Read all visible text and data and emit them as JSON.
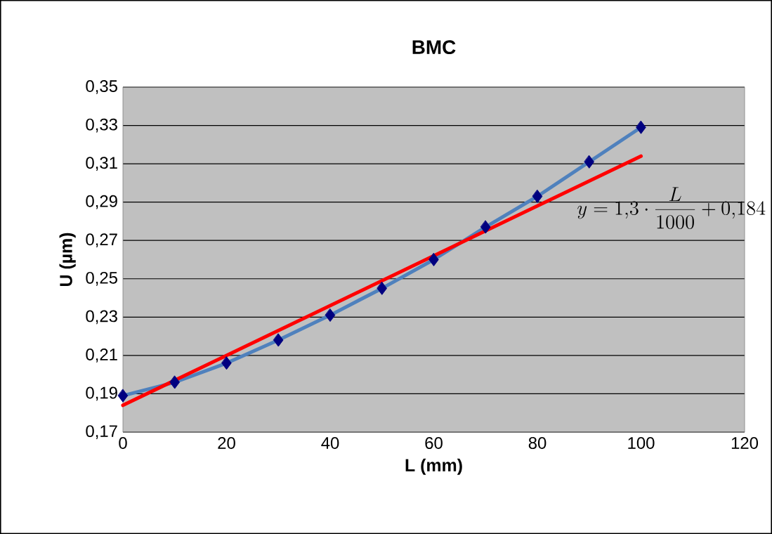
{
  "chart_data": {
    "type": "line",
    "title": "BMC",
    "xlabel": "L (mm)",
    "ylabel": "U (µm)",
    "x": [
      0,
      10,
      20,
      30,
      40,
      50,
      60,
      70,
      80,
      90,
      100
    ],
    "series": [
      {
        "color": "#4f81bd",
        "colors": [
          "#000080",
          "#000080",
          "#000080",
          "#000080",
          "#000080",
          "#000080",
          "#000080",
          "#000080",
          "#000080",
          "#000080",
          "#000080"
        ],
        "marker": "diamond",
        "values": [
          0.189,
          0.196,
          0.206,
          0.218,
          0.231,
          0.245,
          0.26,
          0.277,
          0.293,
          0.311,
          0.329
        ]
      },
      {
        "type": "line",
        "color": "#ff0000",
        "marker": "none",
        "x": [
          0,
          100
        ],
        "values": [
          0.184,
          0.314
        ]
      }
    ],
    "annotations": [
      "y=1{,}3\\cdot\\frac{L}{1000}+0{,}184"
    ],
    "xlim": [
      0,
      120
    ],
    "xticks": [
      0,
      20,
      40,
      60,
      80,
      100,
      120
    ],
    "ylim": [
      0.17,
      0.35
    ],
    "yticks": [
      {
        "value": 0.17,
        "label": "0,17"
      },
      {
        "value": 0.19,
        "label": "0,19"
      },
      {
        "value": 0.21,
        "label": "0,21"
      },
      {
        "value": 0.23,
        "label": "0,23"
      },
      {
        "value": 0.25,
        "label": "0,25"
      },
      {
        "value": 0.27,
        "label": "0,27"
      },
      {
        "value": 0.29,
        "label": "0,29"
      },
      {
        "value": 0.31,
        "label": "0,31"
      },
      {
        "value": 0.33,
        "label": "0,33"
      },
      {
        "value": 0.35,
        "label": "0,35"
      }
    ],
    "grid": "y"
  }
}
